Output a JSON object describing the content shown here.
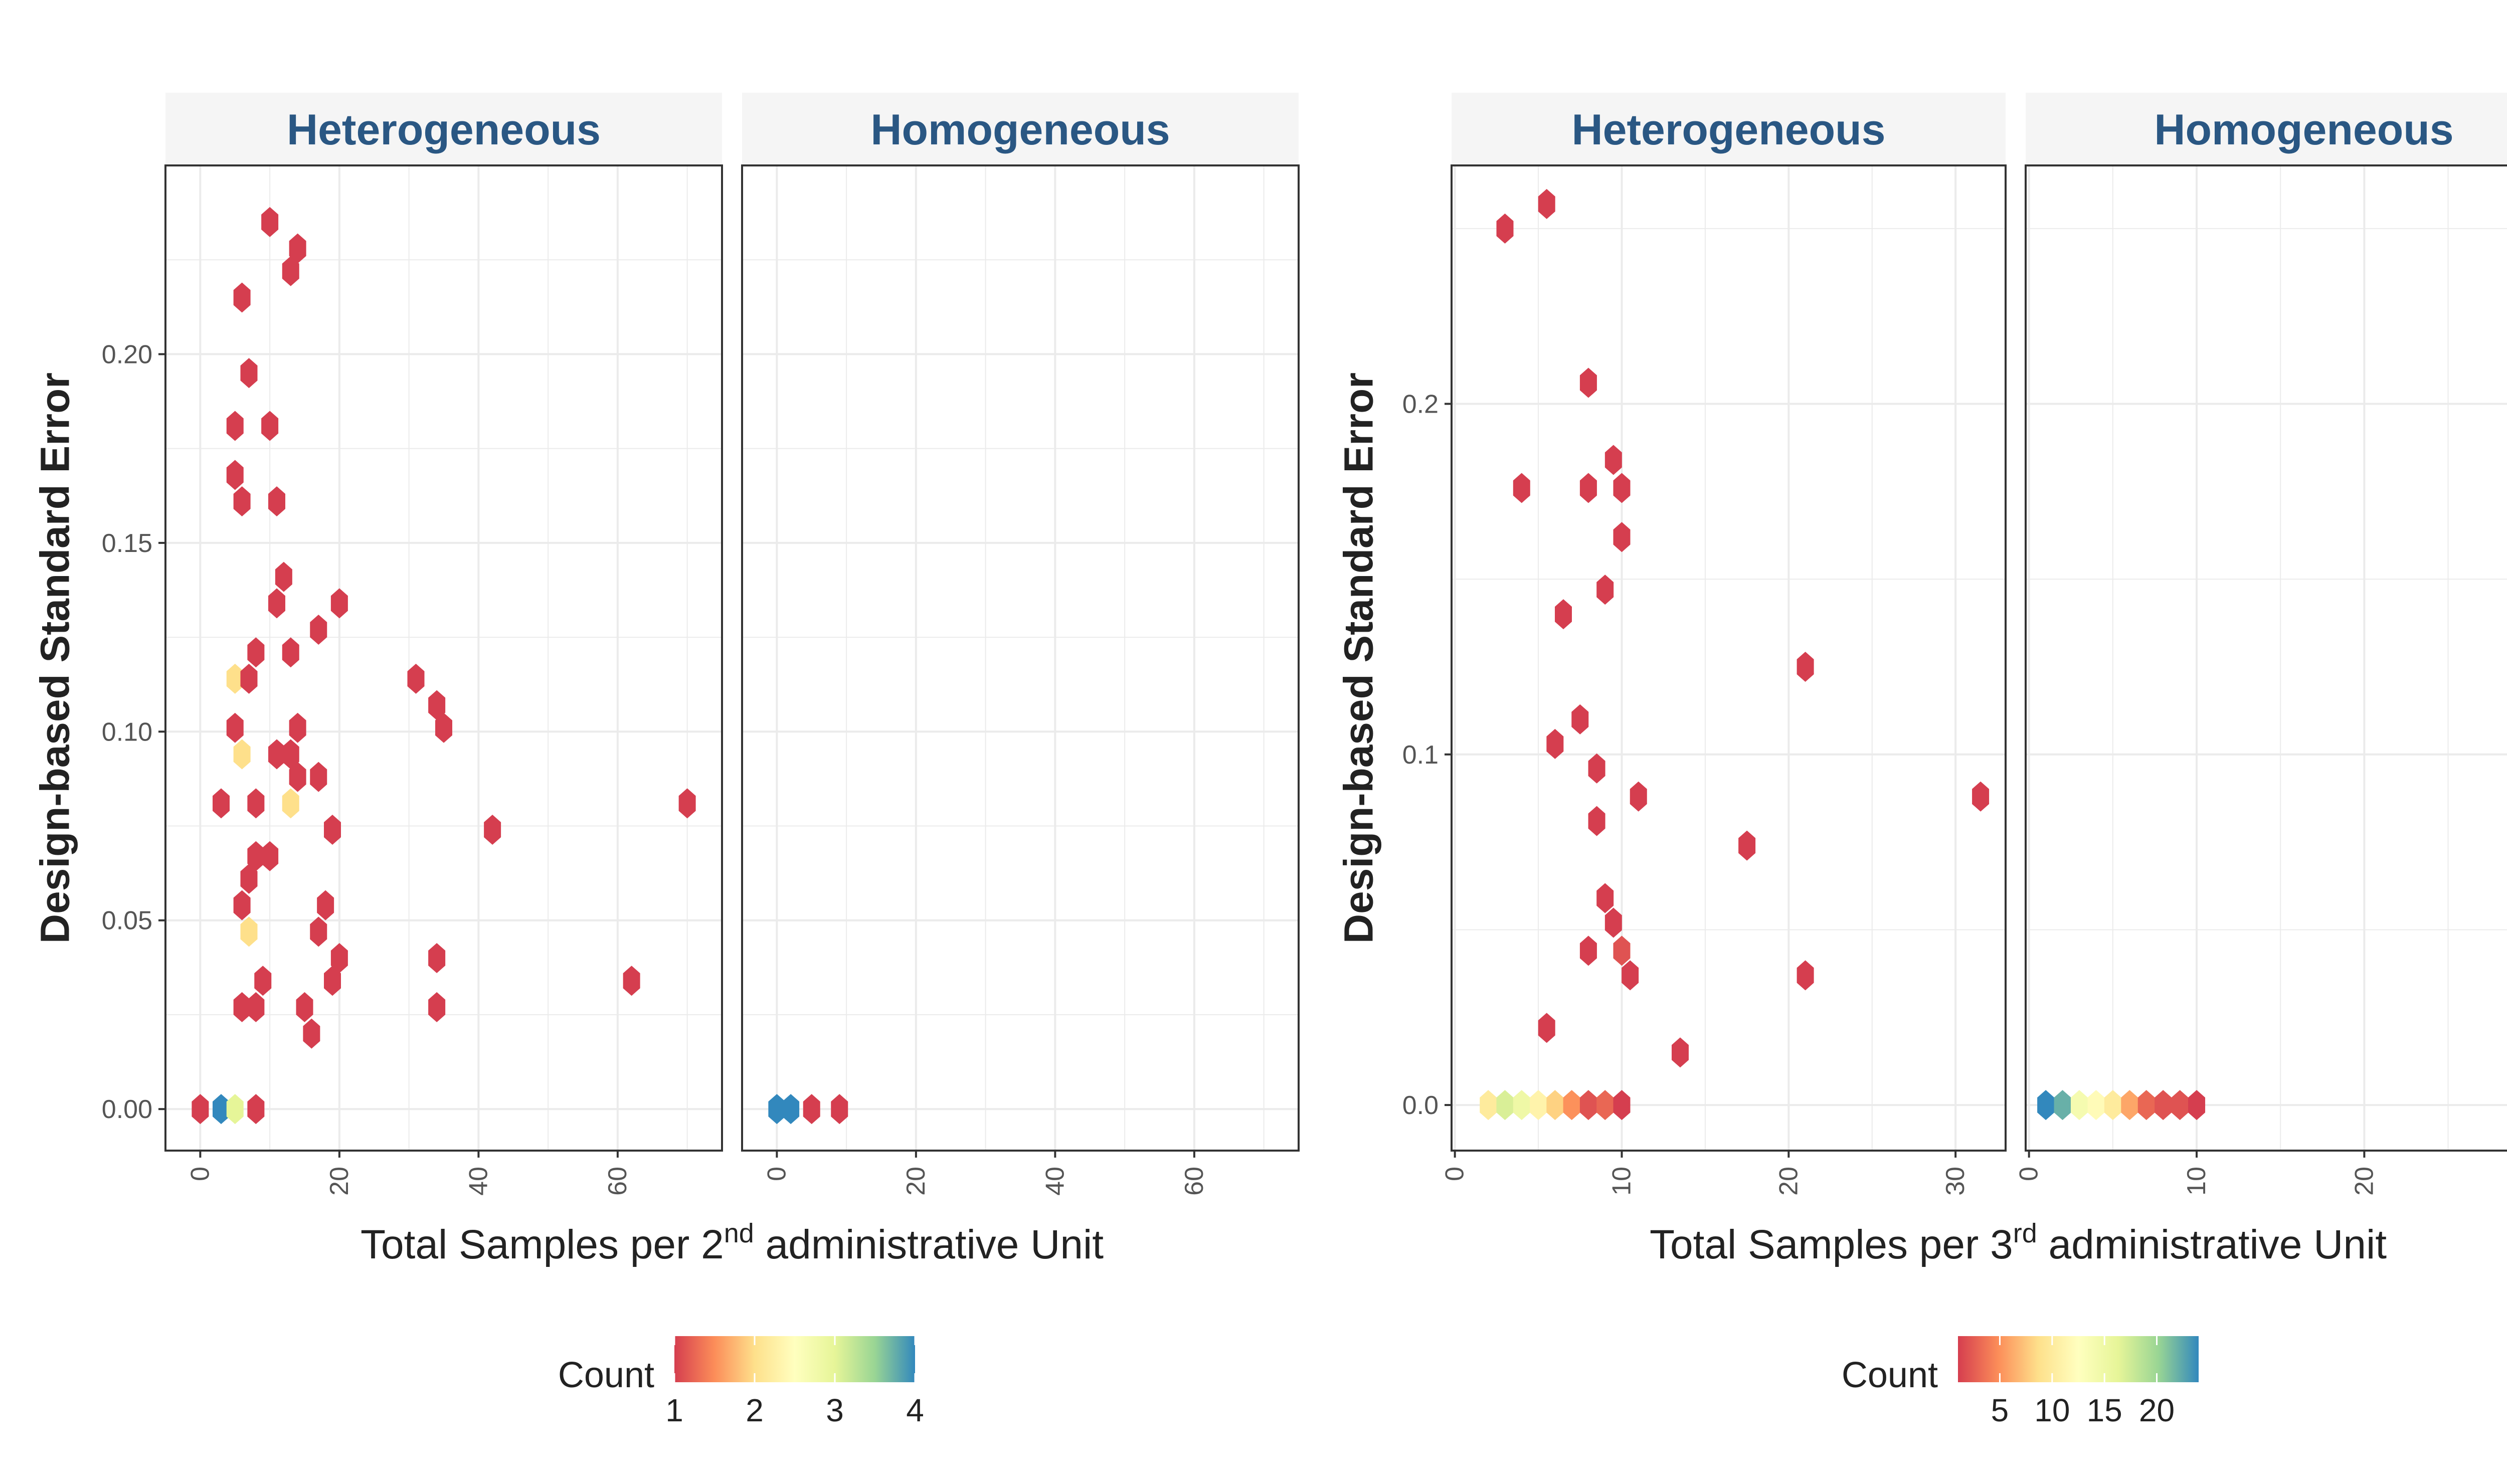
{
  "colors": {
    "scale": [
      "#d53e4f",
      "#fc8d59",
      "#fee08b",
      "#ffffbf",
      "#e6f598",
      "#99d594",
      "#3288bd"
    ],
    "strip_fill": "#f5f5f5",
    "strip_text": "#2a5783",
    "grid": "#ebebeb",
    "panel_border": "#333333"
  },
  "chart_data": [
    {
      "type": "heatmap",
      "xlabel_prefix": "Total Samples per 2",
      "xlabel_sup": "nd",
      "xlabel_suffix": " administrative Unit",
      "ylabel": "Design-based Standard Error",
      "facets": [
        "Heterogeneous",
        "Homogeneous"
      ],
      "xlim": [
        -5,
        75
      ],
      "ylim": [
        -0.011,
        0.25
      ],
      "xticks": [
        0,
        20,
        40,
        60
      ],
      "yticks": [
        0.0,
        0.05,
        0.1,
        0.15,
        0.2
      ],
      "ytick_labels": [
        "0.00",
        "0.05",
        "0.10",
        "0.15",
        "0.20"
      ],
      "legend": {
        "title": "Count",
        "min": 1,
        "max": 4,
        "breaks": [
          1,
          2,
          3,
          4
        ],
        "break_labels": [
          "1",
          "2",
          "3",
          "4"
        ]
      },
      "points": [
        {
          "facet": "Heterogeneous",
          "x": 10,
          "y": 0.235,
          "count": 1
        },
        {
          "facet": "Heterogeneous",
          "x": 13,
          "y": 0.222,
          "count": 1
        },
        {
          "facet": "Heterogeneous",
          "x": 14,
          "y": 0.228,
          "count": 1
        },
        {
          "facet": "Heterogeneous",
          "x": 6,
          "y": 0.215,
          "count": 1
        },
        {
          "facet": "Heterogeneous",
          "x": 7,
          "y": 0.195,
          "count": 1
        },
        {
          "facet": "Heterogeneous",
          "x": 5,
          "y": 0.181,
          "count": 1
        },
        {
          "facet": "Heterogeneous",
          "x": 10,
          "y": 0.181,
          "count": 1
        },
        {
          "facet": "Heterogeneous",
          "x": 5,
          "y": 0.168,
          "count": 1
        },
        {
          "facet": "Heterogeneous",
          "x": 6,
          "y": 0.161,
          "count": 1
        },
        {
          "facet": "Heterogeneous",
          "x": 11,
          "y": 0.161,
          "count": 1
        },
        {
          "facet": "Heterogeneous",
          "x": 12,
          "y": 0.141,
          "count": 1
        },
        {
          "facet": "Heterogeneous",
          "x": 11,
          "y": 0.134,
          "count": 1
        },
        {
          "facet": "Heterogeneous",
          "x": 20,
          "y": 0.134,
          "count": 1
        },
        {
          "facet": "Heterogeneous",
          "x": 17,
          "y": 0.127,
          "count": 1
        },
        {
          "facet": "Heterogeneous",
          "x": 8,
          "y": 0.121,
          "count": 1
        },
        {
          "facet": "Heterogeneous",
          "x": 13,
          "y": 0.121,
          "count": 1
        },
        {
          "facet": "Heterogeneous",
          "x": 5,
          "y": 0.114,
          "count": 2
        },
        {
          "facet": "Heterogeneous",
          "x": 7,
          "y": 0.114,
          "count": 1
        },
        {
          "facet": "Heterogeneous",
          "x": 31,
          "y": 0.114,
          "count": 1
        },
        {
          "facet": "Heterogeneous",
          "x": 34,
          "y": 0.107,
          "count": 1
        },
        {
          "facet": "Heterogeneous",
          "x": 5,
          "y": 0.101,
          "count": 1
        },
        {
          "facet": "Heterogeneous",
          "x": 14,
          "y": 0.101,
          "count": 1
        },
        {
          "facet": "Heterogeneous",
          "x": 35,
          "y": 0.101,
          "count": 1
        },
        {
          "facet": "Heterogeneous",
          "x": 6,
          "y": 0.094,
          "count": 2
        },
        {
          "facet": "Heterogeneous",
          "x": 11,
          "y": 0.094,
          "count": 1
        },
        {
          "facet": "Heterogeneous",
          "x": 13,
          "y": 0.094,
          "count": 1
        },
        {
          "facet": "Heterogeneous",
          "x": 14,
          "y": 0.088,
          "count": 1
        },
        {
          "facet": "Heterogeneous",
          "x": 17,
          "y": 0.088,
          "count": 1
        },
        {
          "facet": "Heterogeneous",
          "x": 3,
          "y": 0.081,
          "count": 1
        },
        {
          "facet": "Heterogeneous",
          "x": 8,
          "y": 0.081,
          "count": 1
        },
        {
          "facet": "Heterogeneous",
          "x": 13,
          "y": 0.081,
          "count": 2
        },
        {
          "facet": "Heterogeneous",
          "x": 70,
          "y": 0.081,
          "count": 1
        },
        {
          "facet": "Heterogeneous",
          "x": 19,
          "y": 0.074,
          "count": 1
        },
        {
          "facet": "Heterogeneous",
          "x": 42,
          "y": 0.074,
          "count": 1
        },
        {
          "facet": "Heterogeneous",
          "x": 8,
          "y": 0.067,
          "count": 1
        },
        {
          "facet": "Heterogeneous",
          "x": 10,
          "y": 0.067,
          "count": 1
        },
        {
          "facet": "Heterogeneous",
          "x": 7,
          "y": 0.061,
          "count": 1
        },
        {
          "facet": "Heterogeneous",
          "x": 6,
          "y": 0.054,
          "count": 1
        },
        {
          "facet": "Heterogeneous",
          "x": 18,
          "y": 0.054,
          "count": 1
        },
        {
          "facet": "Heterogeneous",
          "x": 7,
          "y": 0.047,
          "count": 2
        },
        {
          "facet": "Heterogeneous",
          "x": 17,
          "y": 0.047,
          "count": 1
        },
        {
          "facet": "Heterogeneous",
          "x": 20,
          "y": 0.04,
          "count": 1
        },
        {
          "facet": "Heterogeneous",
          "x": 34,
          "y": 0.04,
          "count": 1
        },
        {
          "facet": "Heterogeneous",
          "x": 9,
          "y": 0.034,
          "count": 1
        },
        {
          "facet": "Heterogeneous",
          "x": 19,
          "y": 0.034,
          "count": 1
        },
        {
          "facet": "Heterogeneous",
          "x": 62,
          "y": 0.034,
          "count": 1
        },
        {
          "facet": "Heterogeneous",
          "x": 6,
          "y": 0.027,
          "count": 1
        },
        {
          "facet": "Heterogeneous",
          "x": 8,
          "y": 0.027,
          "count": 1
        },
        {
          "facet": "Heterogeneous",
          "x": 15,
          "y": 0.027,
          "count": 1
        },
        {
          "facet": "Heterogeneous",
          "x": 34,
          "y": 0.027,
          "count": 1
        },
        {
          "facet": "Heterogeneous",
          "x": 16,
          "y": 0.02,
          "count": 1
        },
        {
          "facet": "Heterogeneous",
          "x": 0,
          "y": 0.0,
          "count": 1
        },
        {
          "facet": "Heterogeneous",
          "x": 3,
          "y": 0.0,
          "count": 4
        },
        {
          "facet": "Heterogeneous",
          "x": 5,
          "y": 0.0,
          "count": 3
        },
        {
          "facet": "Heterogeneous",
          "x": 8,
          "y": 0.0,
          "count": 1
        },
        {
          "facet": "Homogeneous",
          "x": 0,
          "y": 0.0,
          "count": 4
        },
        {
          "facet": "Homogeneous",
          "x": 2,
          "y": 0.0,
          "count": 4
        },
        {
          "facet": "Homogeneous",
          "x": 5,
          "y": 0.0,
          "count": 1
        },
        {
          "facet": "Homogeneous",
          "x": 9,
          "y": 0.0,
          "count": 1
        }
      ]
    },
    {
      "type": "heatmap",
      "xlabel_prefix": "Total Samples per 3",
      "xlabel_sup": "rd",
      "xlabel_suffix": " administrative Unit",
      "ylabel": "Design-based Standard Error",
      "facets": [
        "Heterogeneous",
        "Homogeneous"
      ],
      "xlim": [
        -0.2,
        33
      ],
      "ylim": [
        -0.013,
        0.268
      ],
      "xticks": [
        0,
        10,
        20,
        30
      ],
      "yticks": [
        0.0,
        0.1,
        0.2
      ],
      "ytick_labels": [
        "0.0",
        "0.1",
        "0.2"
      ],
      "legend": {
        "title": "Count",
        "min": 1,
        "max": 24,
        "breaks": [
          5,
          10,
          15,
          20
        ],
        "break_labels": [
          "5",
          "10",
          "15",
          "20"
        ]
      },
      "points": [
        {
          "facet": "Heterogeneous",
          "x": 5.5,
          "y": 0.257,
          "count": 1
        },
        {
          "facet": "Heterogeneous",
          "x": 3,
          "y": 0.25,
          "count": 1
        },
        {
          "facet": "Heterogeneous",
          "x": 8,
          "y": 0.206,
          "count": 1
        },
        {
          "facet": "Heterogeneous",
          "x": 9.5,
          "y": 0.184,
          "count": 1
        },
        {
          "facet": "Heterogeneous",
          "x": 4,
          "y": 0.176,
          "count": 1
        },
        {
          "facet": "Heterogeneous",
          "x": 8,
          "y": 0.176,
          "count": 1
        },
        {
          "facet": "Heterogeneous",
          "x": 10,
          "y": 0.176,
          "count": 1
        },
        {
          "facet": "Heterogeneous",
          "x": 10,
          "y": 0.162,
          "count": 1
        },
        {
          "facet": "Heterogeneous",
          "x": 9,
          "y": 0.147,
          "count": 1
        },
        {
          "facet": "Heterogeneous",
          "x": 6.5,
          "y": 0.14,
          "count": 1
        },
        {
          "facet": "Heterogeneous",
          "x": 21,
          "y": 0.125,
          "count": 1
        },
        {
          "facet": "Heterogeneous",
          "x": 7.5,
          "y": 0.11,
          "count": 1
        },
        {
          "facet": "Heterogeneous",
          "x": 6,
          "y": 0.103,
          "count": 1
        },
        {
          "facet": "Heterogeneous",
          "x": 8.5,
          "y": 0.096,
          "count": 1
        },
        {
          "facet": "Heterogeneous",
          "x": 11,
          "y": 0.088,
          "count": 1
        },
        {
          "facet": "Heterogeneous",
          "x": 31.5,
          "y": 0.088,
          "count": 1
        },
        {
          "facet": "Heterogeneous",
          "x": 8.5,
          "y": 0.081,
          "count": 1
        },
        {
          "facet": "Heterogeneous",
          "x": 17.5,
          "y": 0.074,
          "count": 1
        },
        {
          "facet": "Heterogeneous",
          "x": 9,
          "y": 0.059,
          "count": 1
        },
        {
          "facet": "Heterogeneous",
          "x": 9.5,
          "y": 0.052,
          "count": 1
        },
        {
          "facet": "Heterogeneous",
          "x": 8,
          "y": 0.044,
          "count": 1
        },
        {
          "facet": "Heterogeneous",
          "x": 10,
          "y": 0.044,
          "count": 2
        },
        {
          "facet": "Heterogeneous",
          "x": 10.5,
          "y": 0.037,
          "count": 1
        },
        {
          "facet": "Heterogeneous",
          "x": 21,
          "y": 0.037,
          "count": 1
        },
        {
          "facet": "Heterogeneous",
          "x": 5.5,
          "y": 0.022,
          "count": 1
        },
        {
          "facet": "Heterogeneous",
          "x": 13.5,
          "y": 0.015,
          "count": 1
        },
        {
          "facet": "Heterogeneous",
          "x": 2,
          "y": 0.0,
          "count": 10
        },
        {
          "facet": "Heterogeneous",
          "x": 3,
          "y": 0.0,
          "count": 17
        },
        {
          "facet": "Heterogeneous",
          "x": 4,
          "y": 0.0,
          "count": 15
        },
        {
          "facet": "Heterogeneous",
          "x": 5,
          "y": 0.0,
          "count": 11
        },
        {
          "facet": "Heterogeneous",
          "x": 6,
          "y": 0.0,
          "count": 8
        },
        {
          "facet": "Heterogeneous",
          "x": 7,
          "y": 0.0,
          "count": 5
        },
        {
          "facet": "Heterogeneous",
          "x": 8,
          "y": 0.0,
          "count": 2
        },
        {
          "facet": "Heterogeneous",
          "x": 9,
          "y": 0.0,
          "count": 3
        },
        {
          "facet": "Heterogeneous",
          "x": 10,
          "y": 0.0,
          "count": 1
        },
        {
          "facet": "Homogeneous",
          "x": 1,
          "y": 0.0,
          "count": 24
        },
        {
          "facet": "Homogeneous",
          "x": 2,
          "y": 0.0,
          "count": 22
        },
        {
          "facet": "Homogeneous",
          "x": 3,
          "y": 0.0,
          "count": 14
        },
        {
          "facet": "Homogeneous",
          "x": 4,
          "y": 0.0,
          "count": 12
        },
        {
          "facet": "Homogeneous",
          "x": 5,
          "y": 0.0,
          "count": 10
        },
        {
          "facet": "Homogeneous",
          "x": 6,
          "y": 0.0,
          "count": 6
        },
        {
          "facet": "Homogeneous",
          "x": 7,
          "y": 0.0,
          "count": 3
        },
        {
          "facet": "Homogeneous",
          "x": 8,
          "y": 0.0,
          "count": 2
        },
        {
          "facet": "Homogeneous",
          "x": 9,
          "y": 0.0,
          "count": 2
        },
        {
          "facet": "Homogeneous",
          "x": 10,
          "y": 0.0,
          "count": 1
        }
      ]
    }
  ]
}
